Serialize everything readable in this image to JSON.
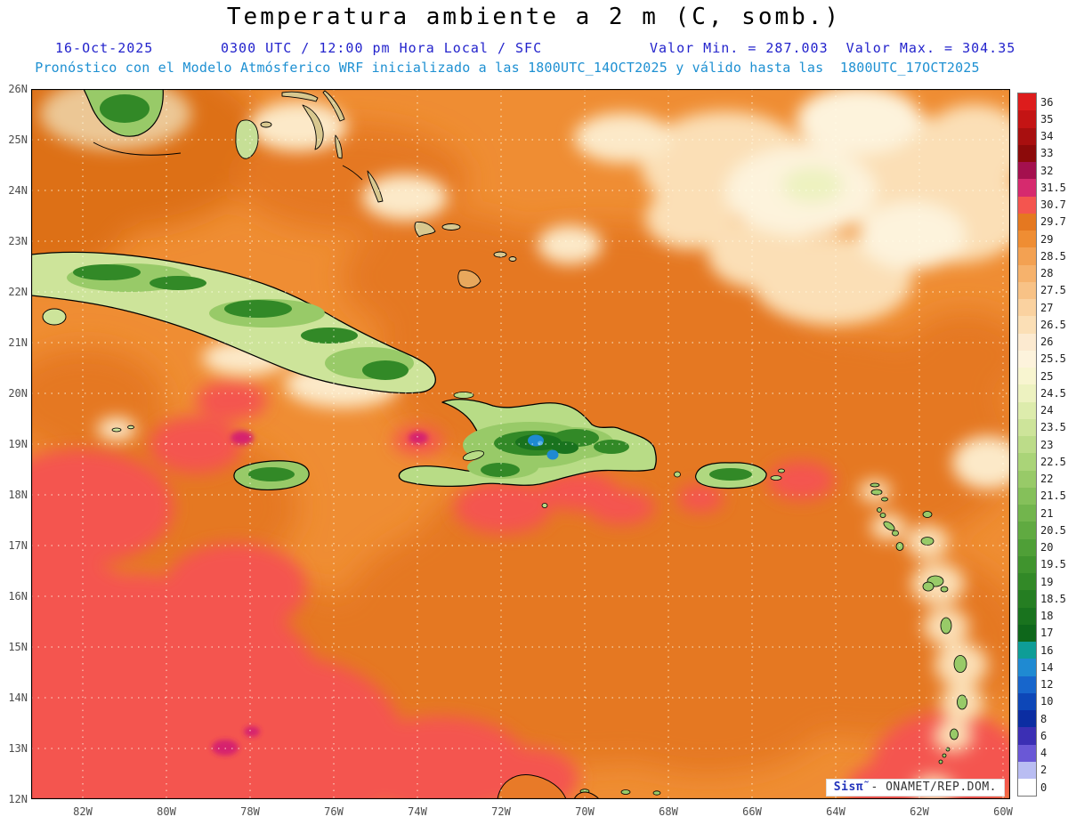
{
  "header": {
    "title": "Temperatura ambiente a 2 m (C, somb.)",
    "date": "16-Oct-2025",
    "time_line": "0300 UTC / 12:00 pm Hora Local / SFC",
    "minmax": "Valor Min. = 287.003  Valor Max. = 304.35",
    "min_value": "287.003",
    "max_value": "304.35",
    "model_line": "Pronóstico con el Modelo Atmósferico WRF inicializado a las 1800UTC_14OCT2025 y válido hasta las  1800UTC_17OCT2025"
  },
  "map": {
    "lat_labels": [
      "26N",
      "25N",
      "24N",
      "23N",
      "22N",
      "21N",
      "20N",
      "19N",
      "18N",
      "17N",
      "16N",
      "15N",
      "14N",
      "13N",
      "12N"
    ],
    "lon_labels": [
      "82W",
      "80W",
      "78W",
      "76W",
      "74W",
      "72W",
      "70W",
      "68W",
      "66W",
      "64W",
      "62W",
      "60W"
    ]
  },
  "colorbar": {
    "entries": [
      {
        "label": "36",
        "color": "#dd1c1c"
      },
      {
        "label": "35",
        "color": "#c41414"
      },
      {
        "label": "34",
        "color": "#a80f0f"
      },
      {
        "label": "33",
        "color": "#8c0a0a"
      },
      {
        "label": "32",
        "color": "#a4104e"
      },
      {
        "label": "31.5",
        "color": "#d62a6e"
      },
      {
        "label": "30.7",
        "color": "#f4554f"
      },
      {
        "label": "29.7",
        "color": "#e57820"
      },
      {
        "label": "29",
        "color": "#ef8d33"
      },
      {
        "label": "28.5",
        "color": "#f3a152"
      },
      {
        "label": "28",
        "color": "#f6b26c"
      },
      {
        "label": "27.5",
        "color": "#f8c286"
      },
      {
        "label": "27",
        "color": "#fad2a0"
      },
      {
        "label": "26.5",
        "color": "#fbdfb6"
      },
      {
        "label": "26",
        "color": "#fcead0"
      },
      {
        "label": "25.5",
        "color": "#fdf3dc"
      },
      {
        "label": "25",
        "color": "#f8f5d0"
      },
      {
        "label": "24.5",
        "color": "#edf2c0"
      },
      {
        "label": "24",
        "color": "#ddecac"
      },
      {
        "label": "23.5",
        "color": "#cde49a"
      },
      {
        "label": "23",
        "color": "#bcdc89"
      },
      {
        "label": "22.5",
        "color": "#aad478"
      },
      {
        "label": "22",
        "color": "#98ca68"
      },
      {
        "label": "21.5",
        "color": "#85c05a"
      },
      {
        "label": "21",
        "color": "#72b54d"
      },
      {
        "label": "20.5",
        "color": "#60aa41"
      },
      {
        "label": "20",
        "color": "#4f9f37"
      },
      {
        "label": "19.5",
        "color": "#40942e"
      },
      {
        "label": "19",
        "color": "#328927"
      },
      {
        "label": "18.5",
        "color": "#257e22"
      },
      {
        "label": "18",
        "color": "#19731e"
      },
      {
        "label": "17",
        "color": "#0e671b"
      },
      {
        "label": "16",
        "color": "#0e9d97"
      },
      {
        "label": "14",
        "color": "#1f8ad2"
      },
      {
        "label": "12",
        "color": "#1766cc"
      },
      {
        "label": "10",
        "color": "#0d47b8"
      },
      {
        "label": "8",
        "color": "#0b2da2"
      },
      {
        "label": "6",
        "color": "#3b2fb4"
      },
      {
        "label": "4",
        "color": "#6a58d6"
      },
      {
        "label": "2",
        "color": "#b9bdf2"
      },
      {
        "label": "0",
        "color": "#ffffff"
      }
    ]
  },
  "watermark": {
    "brand": "Sisπ̃",
    "org": "- ONAMET/REP.DOM."
  },
  "colors": {
    "sea_base": "#ef8d33",
    "sea_warm": "#e57820",
    "sea_hot": "#f4554f",
    "sea_hottest": "#d6246e",
    "sea_cool_cream": "#fbdfb6",
    "subtitle_blue": "#2323cc",
    "model_line_blue": "#1e90d2"
  }
}
